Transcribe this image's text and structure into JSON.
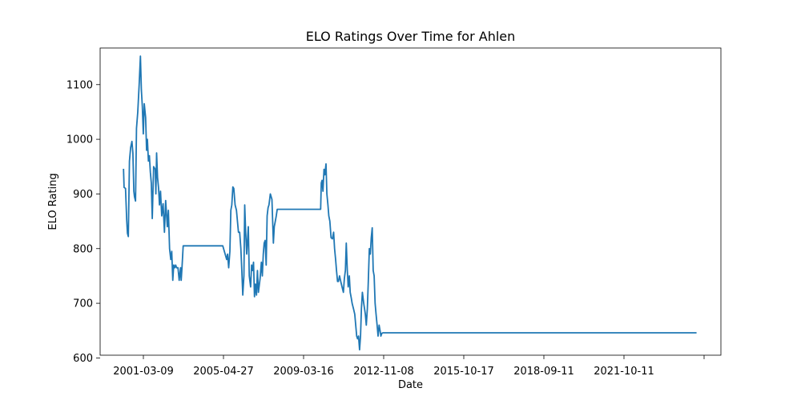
{
  "chart_data": {
    "type": "line",
    "title": "ELO Ratings Over Time for Ahlen",
    "xlabel": "Date",
    "ylabel": "ELO Rating",
    "x_tick_labels": [
      "2001-03-09",
      "2005-04-27",
      "2009-03-16",
      "2012-11-08",
      "2015-10-17",
      "2018-09-11",
      "2021-10-11",
      ""
    ],
    "y_ticks": [
      600,
      700,
      800,
      900,
      1000,
      1100
    ],
    "ylim": [
      605,
      1167
    ],
    "xlim": [
      "1999-03-01",
      "2025-10-01"
    ],
    "grid": false,
    "line_color": "#1f77b4",
    "series": [
      {
        "x": [
          "2000-03-01",
          "2000-03-10",
          "2000-04-01",
          "2000-04-20",
          "2000-05-01",
          "2000-05-15",
          "2000-06-01",
          "2000-06-20",
          "2000-07-10",
          "2000-07-25",
          "2000-08-10",
          "2000-08-20",
          "2000-09-05",
          "2000-09-20",
          "2000-10-10",
          "2000-11-01",
          "2000-11-20",
          "2000-12-05",
          "2000-12-20",
          "2001-01-05",
          "2001-01-20",
          "2001-02-10",
          "2001-02-25",
          "2001-03-09",
          "2001-03-25",
          "2001-04-10",
          "2001-04-25",
          "2001-05-10",
          "2001-05-25",
          "2001-06-15",
          "2001-07-10",
          "2001-07-20",
          "2001-08-01",
          "2001-08-15",
          "2001-09-01",
          "2001-09-15",
          "2001-10-01",
          "2001-10-20",
          "2001-11-10",
          "2001-12-01",
          "2001-12-20",
          "2002-01-15",
          "2002-02-01",
          "2002-02-20",
          "2002-03-10",
          "2002-03-25",
          "2002-04-10",
          "2002-04-25",
          "2002-05-10",
          "2002-05-25",
          "2002-06-10",
          "2002-07-01",
          "2002-07-20",
          "2002-08-10",
          "2002-08-20",
          "2002-09-01",
          "2002-09-20",
          "2002-10-10",
          "2002-10-25",
          "2002-11-10",
          "2002-11-25",
          "2002-12-10",
          "2003-01-05",
          "2003-02-01",
          "2003-02-25",
          "2003-03-10",
          "2003-03-25",
          "2003-04-20",
          "2003-05-10",
          "2003-05-25",
          "2003-06-15",
          "2004-01-01",
          "2004-06-01",
          "2004-08-01",
          "2004-08-15",
          "2004-09-01",
          "2004-09-20",
          "2004-10-05",
          "2004-10-20",
          "2004-11-05",
          "2004-11-20",
          "2004-12-10",
          "2005-01-01",
          "2005-02-01",
          "2005-02-20",
          "2005-03-10",
          "2005-03-25",
          "2005-04-10",
          "2005-04-27",
          "2005-05-10",
          "2005-05-25",
          "2005-06-10",
          "2005-07-05",
          "2005-07-20",
          "2005-08-10",
          "2005-08-25",
          "2005-09-10",
          "2005-09-25",
          "2005-10-10",
          "2005-10-25",
          "2005-11-10",
          "2005-11-25",
          "2005-12-10",
          "2006-01-05",
          "2006-01-25",
          "2006-02-10",
          "2006-02-25",
          "2006-03-10",
          "2006-03-25",
          "2006-04-10",
          "2006-04-25",
          "2006-05-10",
          "2006-05-25",
          "2006-06-15",
          "2006-07-10",
          "2006-08-01",
          "2006-08-15",
          "2006-09-01",
          "2006-09-15",
          "2006-10-01",
          "2006-10-15",
          "2006-11-01",
          "2006-11-15",
          "2006-12-01",
          "2007-01-01",
          "2007-06-01",
          "2008-06-01",
          "2008-08-01",
          "2008-08-10",
          "2008-08-20",
          "2008-09-01",
          "2008-09-15",
          "2008-10-01",
          "2008-10-15",
          "2008-11-01",
          "2008-11-15",
          "2008-12-01",
          "2008-12-15",
          "2009-01-01",
          "2009-01-20",
          "2009-02-10",
          "2009-03-01",
          "2009-03-16",
          "2009-04-01",
          "2009-04-15",
          "2009-05-01",
          "2009-05-15",
          "2009-06-01",
          "2009-06-20",
          "2009-07-10",
          "2009-08-01",
          "2009-08-15",
          "2009-09-01",
          "2009-09-15",
          "2009-10-01",
          "2009-10-15",
          "2009-11-01",
          "2009-11-15",
          "2009-12-01",
          "2009-12-15",
          "2010-01-05",
          "2010-01-25",
          "2010-02-10",
          "2010-02-25",
          "2010-03-10",
          "2010-03-25",
          "2010-04-10",
          "2010-04-25",
          "2010-05-10",
          "2010-05-25",
          "2010-06-15",
          "2010-07-10",
          "2010-07-25",
          "2010-08-10",
          "2010-08-25",
          "2010-09-10",
          "2010-09-25",
          "2010-10-10",
          "2010-10-25",
          "2010-11-10",
          "2010-11-25",
          "2010-12-10",
          "2010-12-25",
          "2011-01-10",
          "2011-01-25",
          "2011-02-10",
          "2011-02-25",
          "2011-03-10",
          "2011-03-25",
          "2011-04-10",
          "2011-04-25",
          "2011-05-15",
          "2024-09-15"
        ],
        "y": [
          946,
          912,
          910,
          852,
          828,
          822,
          960,
          985,
          996,
          975,
          905,
          895,
          887,
          1020,
          1050,
          1102,
          1152,
          1090,
          1060,
          1010,
          1065,
          1040,
          980,
          1000,
          960,
          970,
          940,
          920,
          855,
          950,
          945,
          900,
          975,
          930,
          910,
          880,
          905,
          860,
          882,
          830,
          888,
          840,
          870,
          800,
          780,
          795,
          742,
          770,
          765,
          770,
          765,
          765,
          742,
          765,
          742,
          765,
          805,
          805,
          805,
          805,
          805,
          805,
          805,
          805,
          805,
          805,
          805,
          805,
          805,
          805,
          805,
          805,
          805,
          780,
          790,
          765,
          795,
          870,
          880,
          913,
          910,
          880,
          870,
          830,
          830,
          800,
          760,
          715,
          750,
          880,
          830,
          790,
          840,
          750,
          730,
          770,
          760,
          775,
          712,
          735,
          715,
          760,
          720,
          745,
          775,
          750,
          790,
          810,
          815,
          770,
          860,
          875,
          880,
          900,
          890,
          810,
          840,
          850,
          860,
          872,
          872,
          872,
          872,
          872,
          872,
          872,
          872,
          872,
          872,
          920,
          925,
          905,
          945,
          935,
          955,
          900,
          880,
          860,
          850,
          820,
          818,
          830,
          800,
          780,
          760,
          740,
          740,
          750,
          740,
          730,
          720,
          745,
          760,
          810,
          760,
          730,
          750,
          720,
          710,
          700,
          690,
          680,
          660,
          640,
          635,
          640,
          615,
          640,
          690,
          720,
          700,
          680,
          660,
          690,
          740,
          800,
          790,
          820,
          838,
          760,
          750,
          700,
          680,
          660,
          640,
          660,
          650,
          640,
          645,
          646,
          646,
          646,
          646
        ]
      }
    ]
  }
}
